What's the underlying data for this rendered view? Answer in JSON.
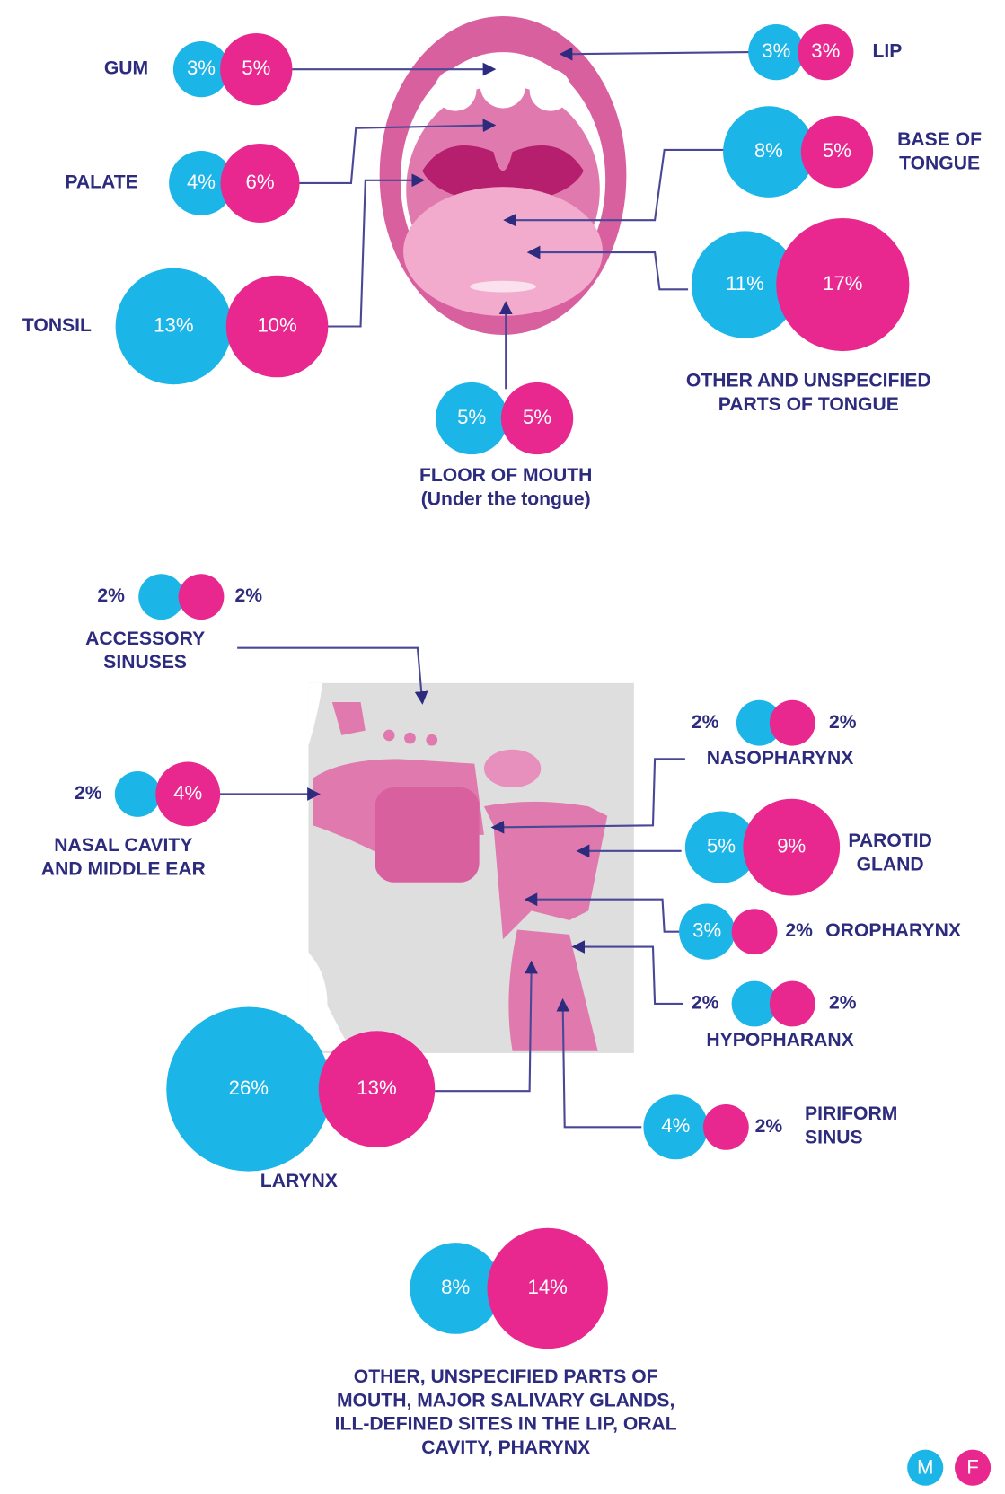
{
  "sites": [
    {
      "label": [
        "GUM"
      ],
      "male": 3,
      "female": 5,
      "male_label": "3%",
      "female_label": "5%"
    },
    {
      "label": [
        "LIP"
      ],
      "male": 3,
      "female": 3,
      "male_label": "3%",
      "female_label": "3%"
    },
    {
      "label": [
        "PALATE"
      ],
      "male": 4,
      "female": 6,
      "male_label": "4%",
      "female_label": "6%"
    },
    {
      "label": [
        "BASE OF",
        "TONGUE"
      ],
      "male": 8,
      "female": 5,
      "male_label": "8%",
      "female_label": "5%"
    },
    {
      "label": [
        "TONSIL"
      ],
      "male": 13,
      "female": 10,
      "male_label": "13%",
      "female_label": "10%"
    },
    {
      "label": [
        "OTHER AND UNSPECIFIED",
        "PARTS OF TONGUE"
      ],
      "male": 11,
      "female": 17,
      "male_label": "11%",
      "female_label": "17%"
    },
    {
      "label": [
        "FLOOR OF MOUTH",
        "(Under the tongue)"
      ],
      "male": 5,
      "female": 5,
      "male_label": "5%",
      "female_label": "5%"
    },
    {
      "label": [
        "ACCESSORY",
        "SINUSES"
      ],
      "male": 2,
      "female": 2,
      "male_label": "2%",
      "female_label": "2%"
    },
    {
      "label": [
        "NASOPHARYNX"
      ],
      "male": 2,
      "female": 2,
      "male_label": "2%",
      "female_label": "2%"
    },
    {
      "label": [
        "NASAL CAVITY",
        "AND MIDDLE EAR"
      ],
      "male": 2,
      "female": 4,
      "male_label": "2%",
      "female_label": "4%"
    },
    {
      "label": [
        "PAROTID",
        "GLAND"
      ],
      "male": 5,
      "female": 9,
      "male_label": "5%",
      "female_label": "9%"
    },
    {
      "label": [
        "OROPHARYNX"
      ],
      "male": 3,
      "female": 2,
      "male_label": "3%",
      "female_label": "2%"
    },
    {
      "label": [
        "HYPOPHARANX"
      ],
      "male": 2,
      "female": 2,
      "male_label": "2%",
      "female_label": "2%"
    },
    {
      "label": [
        "LARYNX"
      ],
      "male": 26,
      "female": 13,
      "male_label": "26%",
      "female_label": "13%"
    },
    {
      "label": [
        "PIRIFORM",
        "SINUS"
      ],
      "male": 4,
      "female": 2,
      "male_label": "4%",
      "female_label": "2%"
    },
    {
      "label": [
        "OTHER, UNSPECIFIED PARTS OF",
        "MOUTH, MAJOR SALIVARY GLANDS,",
        "ILL-DEFINED SITES IN THE LIP, ORAL",
        "CAVITY, PHARYNX"
      ],
      "male": 8,
      "female": 14,
      "male_label": "8%",
      "female_label": "14%"
    }
  ],
  "legend": {
    "male": "M",
    "female": "F"
  }
}
